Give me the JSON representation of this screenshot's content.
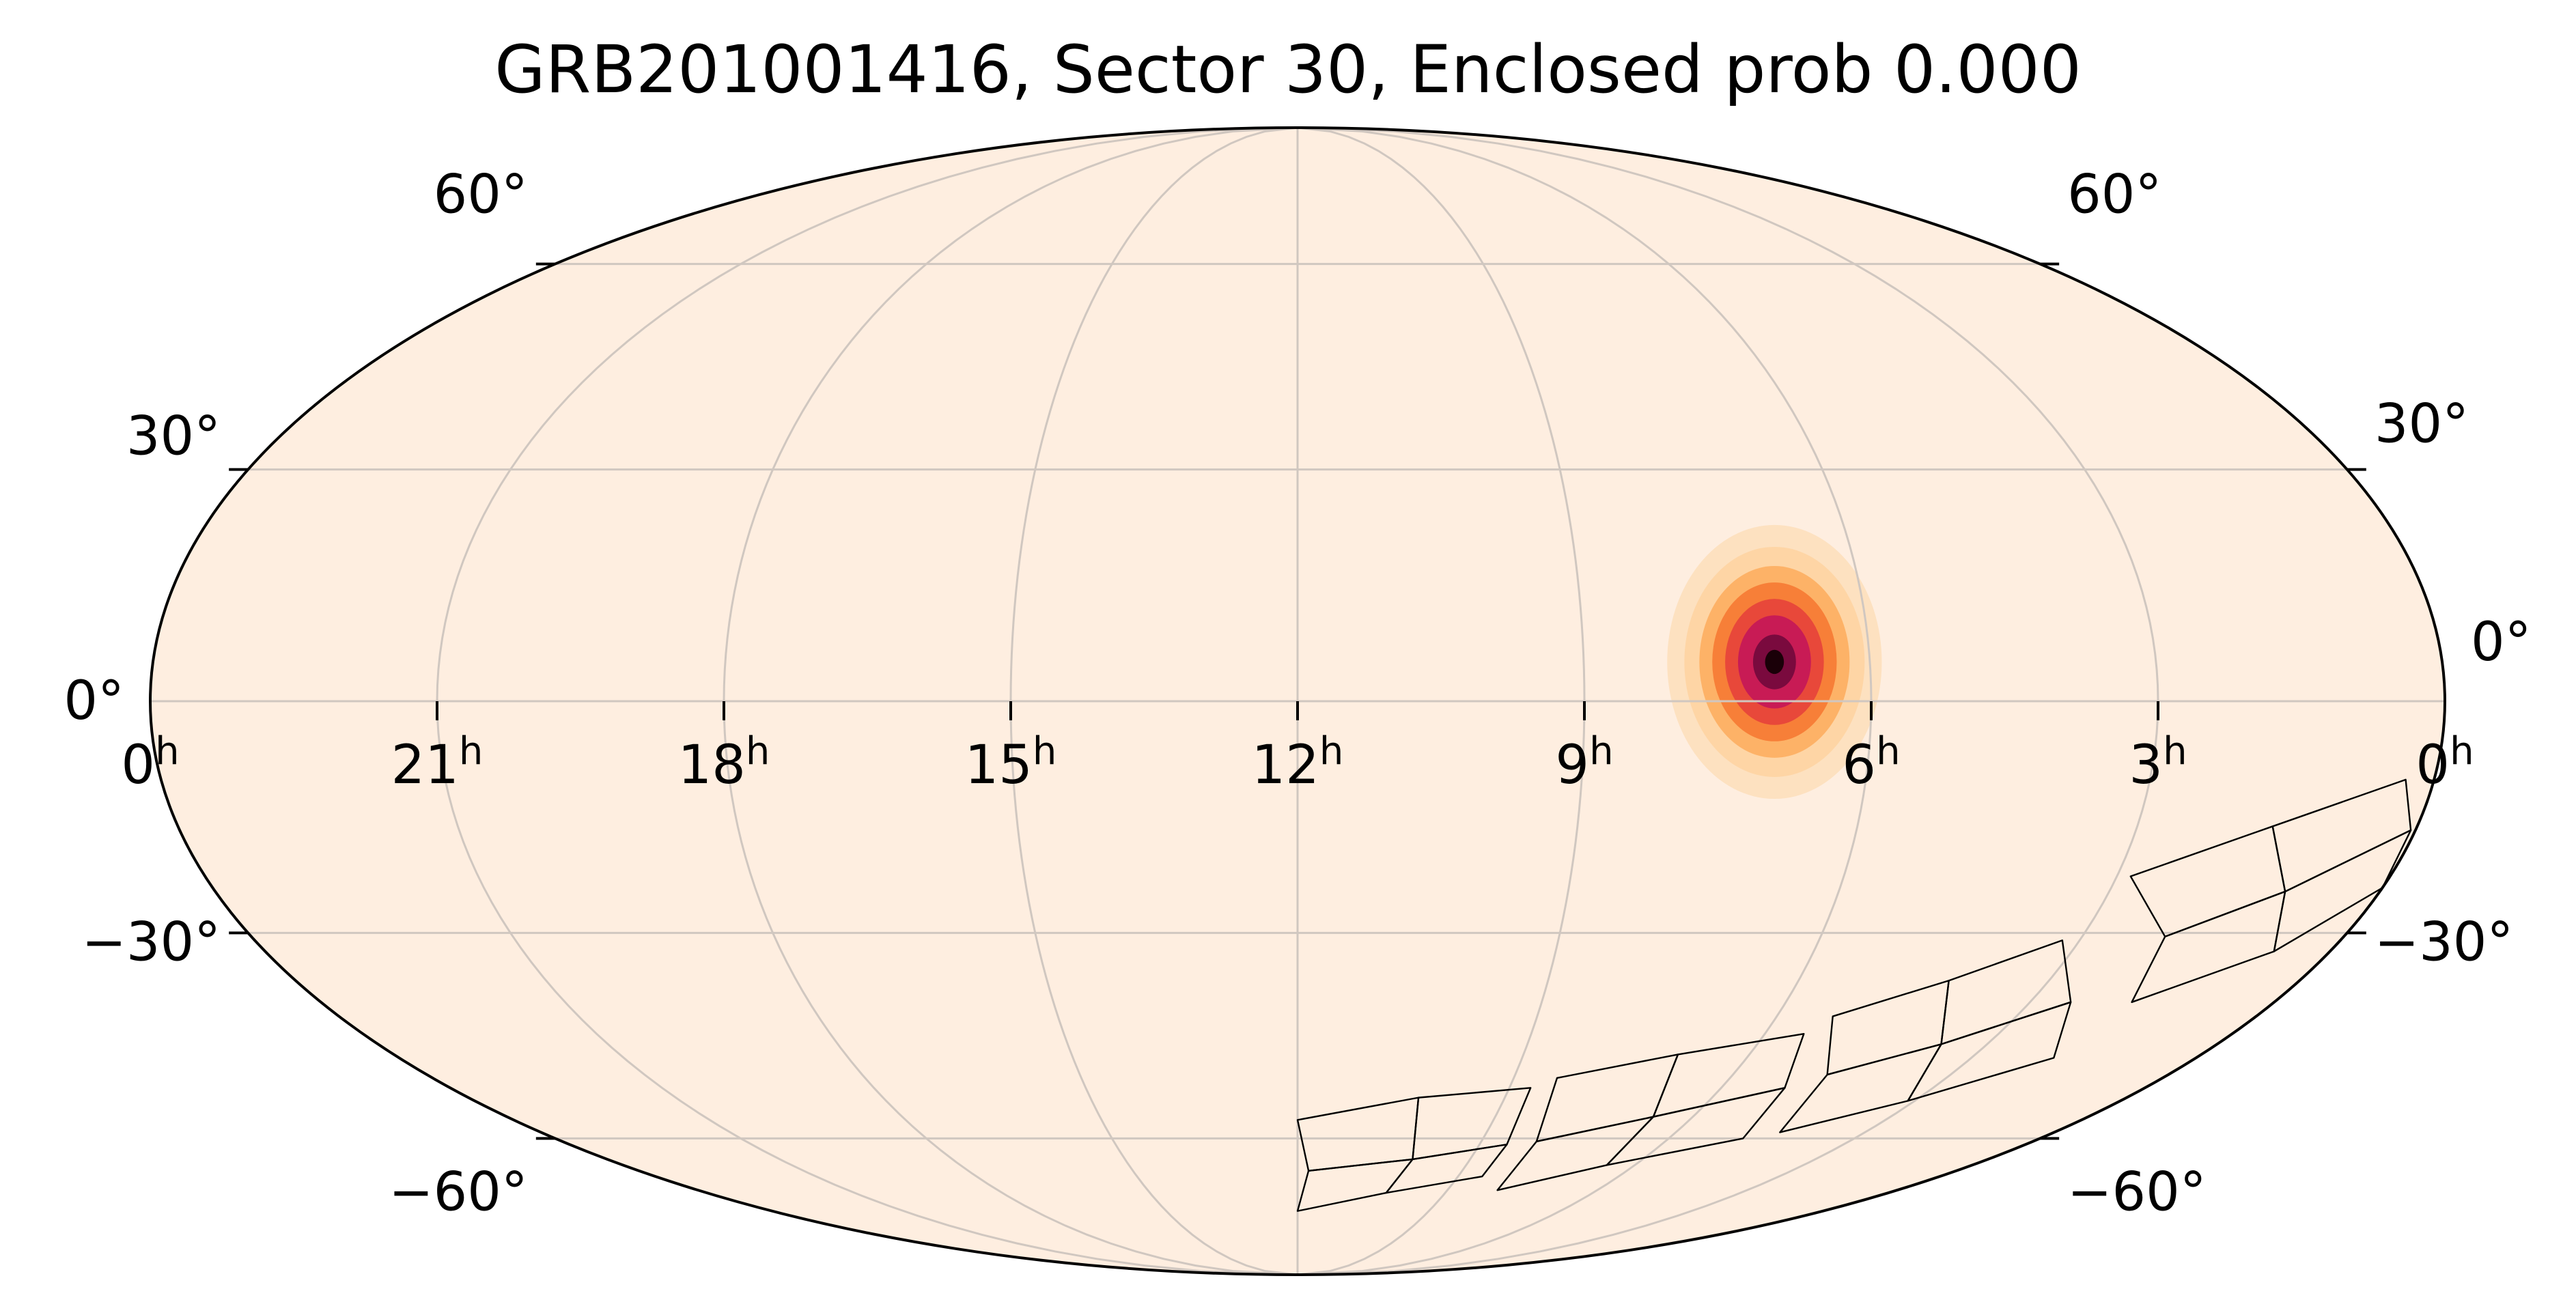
{
  "chart_data": {
    "type": "heatmap",
    "projection": "mollweide",
    "title": "GRB201001416, Sector 30, Enclosed prob 0.000",
    "ra_direction": "increasing to the left (astronomical convention)",
    "ra_tick_labels": [
      {
        "ra_hours": 0,
        "text": "0",
        "sup": "h",
        "side": "left-edge"
      },
      {
        "ra_hours": 21,
        "text": "21",
        "sup": "h"
      },
      {
        "ra_hours": 18,
        "text": "18",
        "sup": "h"
      },
      {
        "ra_hours": 15,
        "text": "15",
        "sup": "h"
      },
      {
        "ra_hours": 12,
        "text": "12",
        "sup": "h"
      },
      {
        "ra_hours": 9,
        "text": "9",
        "sup": "h"
      },
      {
        "ra_hours": 6,
        "text": "6",
        "sup": "h"
      },
      {
        "ra_hours": 3,
        "text": "3",
        "sup": "h"
      },
      {
        "ra_hours": 0,
        "text": "0",
        "sup": "h",
        "side": "right-edge"
      }
    ],
    "dec_tick_labels": [
      {
        "dec_deg": 60,
        "text": "60°",
        "side": "left"
      },
      {
        "dec_deg": 30,
        "text": "30°",
        "side": "left"
      },
      {
        "dec_deg": 0,
        "text": "0°",
        "side": "left"
      },
      {
        "dec_deg": -30,
        "text": "−30°",
        "side": "left"
      },
      {
        "dec_deg": -60,
        "text": "−60°",
        "side": "left"
      },
      {
        "dec_deg": 60,
        "text": "60°",
        "side": "right"
      },
      {
        "dec_deg": 30,
        "text": "30°",
        "side": "right"
      },
      {
        "dec_deg": 0,
        "text": "0°",
        "side": "right"
      },
      {
        "dec_deg": -30,
        "text": "−30°",
        "side": "right"
      },
      {
        "dec_deg": -60,
        "text": "−60°",
        "side": "right"
      }
    ],
    "grid": true,
    "grid_meridians_hours": [
      3,
      6,
      9,
      12,
      15,
      18,
      21
    ],
    "grid_parallels_deg": [
      60,
      30,
      0,
      -30,
      -60
    ],
    "background_color": "#feeee0",
    "grid_color": "#d0c7c0",
    "probability_peak": {
      "ra_hours": 7.0,
      "dec_deg": 5.0,
      "sigma_ra_hours": 0.45,
      "sigma_dec_deg": 7.0,
      "colormap": [
        "#feeee0",
        "#fdd09a",
        "#fdae61",
        "#f77f38",
        "#e8483a",
        "#c81b55",
        "#7a0a3e",
        "#1a0008"
      ]
    },
    "tess_sector_footprint": {
      "sector": 30,
      "camera_ccd_outlines": [
        {
          "corners_ra_dec": [
            [
              0.3,
              -10.0
            ],
            [
              0.05,
              -16.5
            ],
            [
              1.05,
              -24.5
            ],
            [
              1.55,
              -16.0
            ]
          ]
        },
        {
          "corners_ra_dec": [
            [
              1.55,
              -16.0
            ],
            [
              1.05,
              -24.5
            ],
            [
              2.05,
              -30.5
            ],
            [
              2.85,
              -22.5
            ]
          ]
        },
        {
          "corners_ra_dec": [
            [
              0.05,
              -16.5
            ],
            [
              0.0,
              -24.0
            ],
            [
              0.65,
              -32.5
            ],
            [
              1.05,
              -24.5
            ]
          ]
        },
        {
          "corners_ra_dec": [
            [
              1.05,
              -24.5
            ],
            [
              0.65,
              -32.5
            ],
            [
              1.75,
              -39.5
            ],
            [
              2.05,
              -30.5
            ]
          ]
        },
        {
          "corners_ra_dec": [
            [
              3.2,
              -31.0
            ],
            [
              2.5,
              -39.5
            ],
            [
              3.6,
              -45.5
            ],
            [
              4.2,
              -36.5
            ]
          ]
        },
        {
          "corners_ra_dec": [
            [
              4.2,
              -36.5
            ],
            [
              3.6,
              -45.5
            ],
            [
              4.7,
              -50.0
            ],
            [
              5.3,
              -41.5
            ]
          ]
        },
        {
          "corners_ra_dec": [
            [
              2.5,
              -39.5
            ],
            [
              1.9,
              -47.5
            ],
            [
              3.1,
              -54.0
            ],
            [
              3.6,
              -45.5
            ]
          ]
        },
        {
          "corners_ra_dec": [
            [
              3.6,
              -45.5
            ],
            [
              3.1,
              -54.0
            ],
            [
              4.35,
              -59.0
            ],
            [
              4.7,
              -50.0
            ]
          ]
        },
        {
          "corners_ra_dec": [
            [
              5.5,
              -44.0
            ],
            [
              5.1,
              -52.0
            ],
            [
              6.6,
              -56.5
            ],
            [
              6.95,
              -47.0
            ]
          ]
        },
        {
          "corners_ra_dec": [
            [
              6.95,
              -47.0
            ],
            [
              6.6,
              -56.5
            ],
            [
              8.1,
              -60.5
            ],
            [
              8.4,
              -50.5
            ]
          ]
        },
        {
          "corners_ra_dec": [
            [
              5.1,
              -52.0
            ],
            [
              4.8,
              -60.0
            ],
            [
              6.5,
              -64.5
            ],
            [
              6.6,
              -56.5
            ]
          ]
        },
        {
          "corners_ra_dec": [
            [
              6.6,
              -56.5
            ],
            [
              6.5,
              -64.5
            ],
            [
              8.0,
              -69.0
            ],
            [
              8.1,
              -60.5
            ]
          ]
        },
        {
          "corners_ra_dec": [
            [
              8.7,
              -52.0
            ],
            [
              8.55,
              -61.0
            ],
            [
              10.0,
              -63.5
            ],
            [
              10.25,
              -53.5
            ]
          ]
        },
        {
          "corners_ra_dec": [
            [
              10.25,
              -53.5
            ],
            [
              10.0,
              -63.5
            ],
            [
              11.8,
              -65.5
            ],
            [
              12.0,
              -57.0
            ]
          ]
        },
        {
          "corners_ra_dec": [
            [
              8.55,
              -61.0
            ],
            [
              8.55,
              -66.5
            ],
            [
              10.2,
              -69.5
            ],
            [
              10.0,
              -63.5
            ]
          ]
        },
        {
          "corners_ra_dec": [
            [
              10.0,
              -63.5
            ],
            [
              10.2,
              -69.5
            ],
            [
              12.0,
              -73.0
            ],
            [
              11.8,
              -65.5
            ]
          ]
        }
      ]
    },
    "enclosed_probability": 0.0
  }
}
